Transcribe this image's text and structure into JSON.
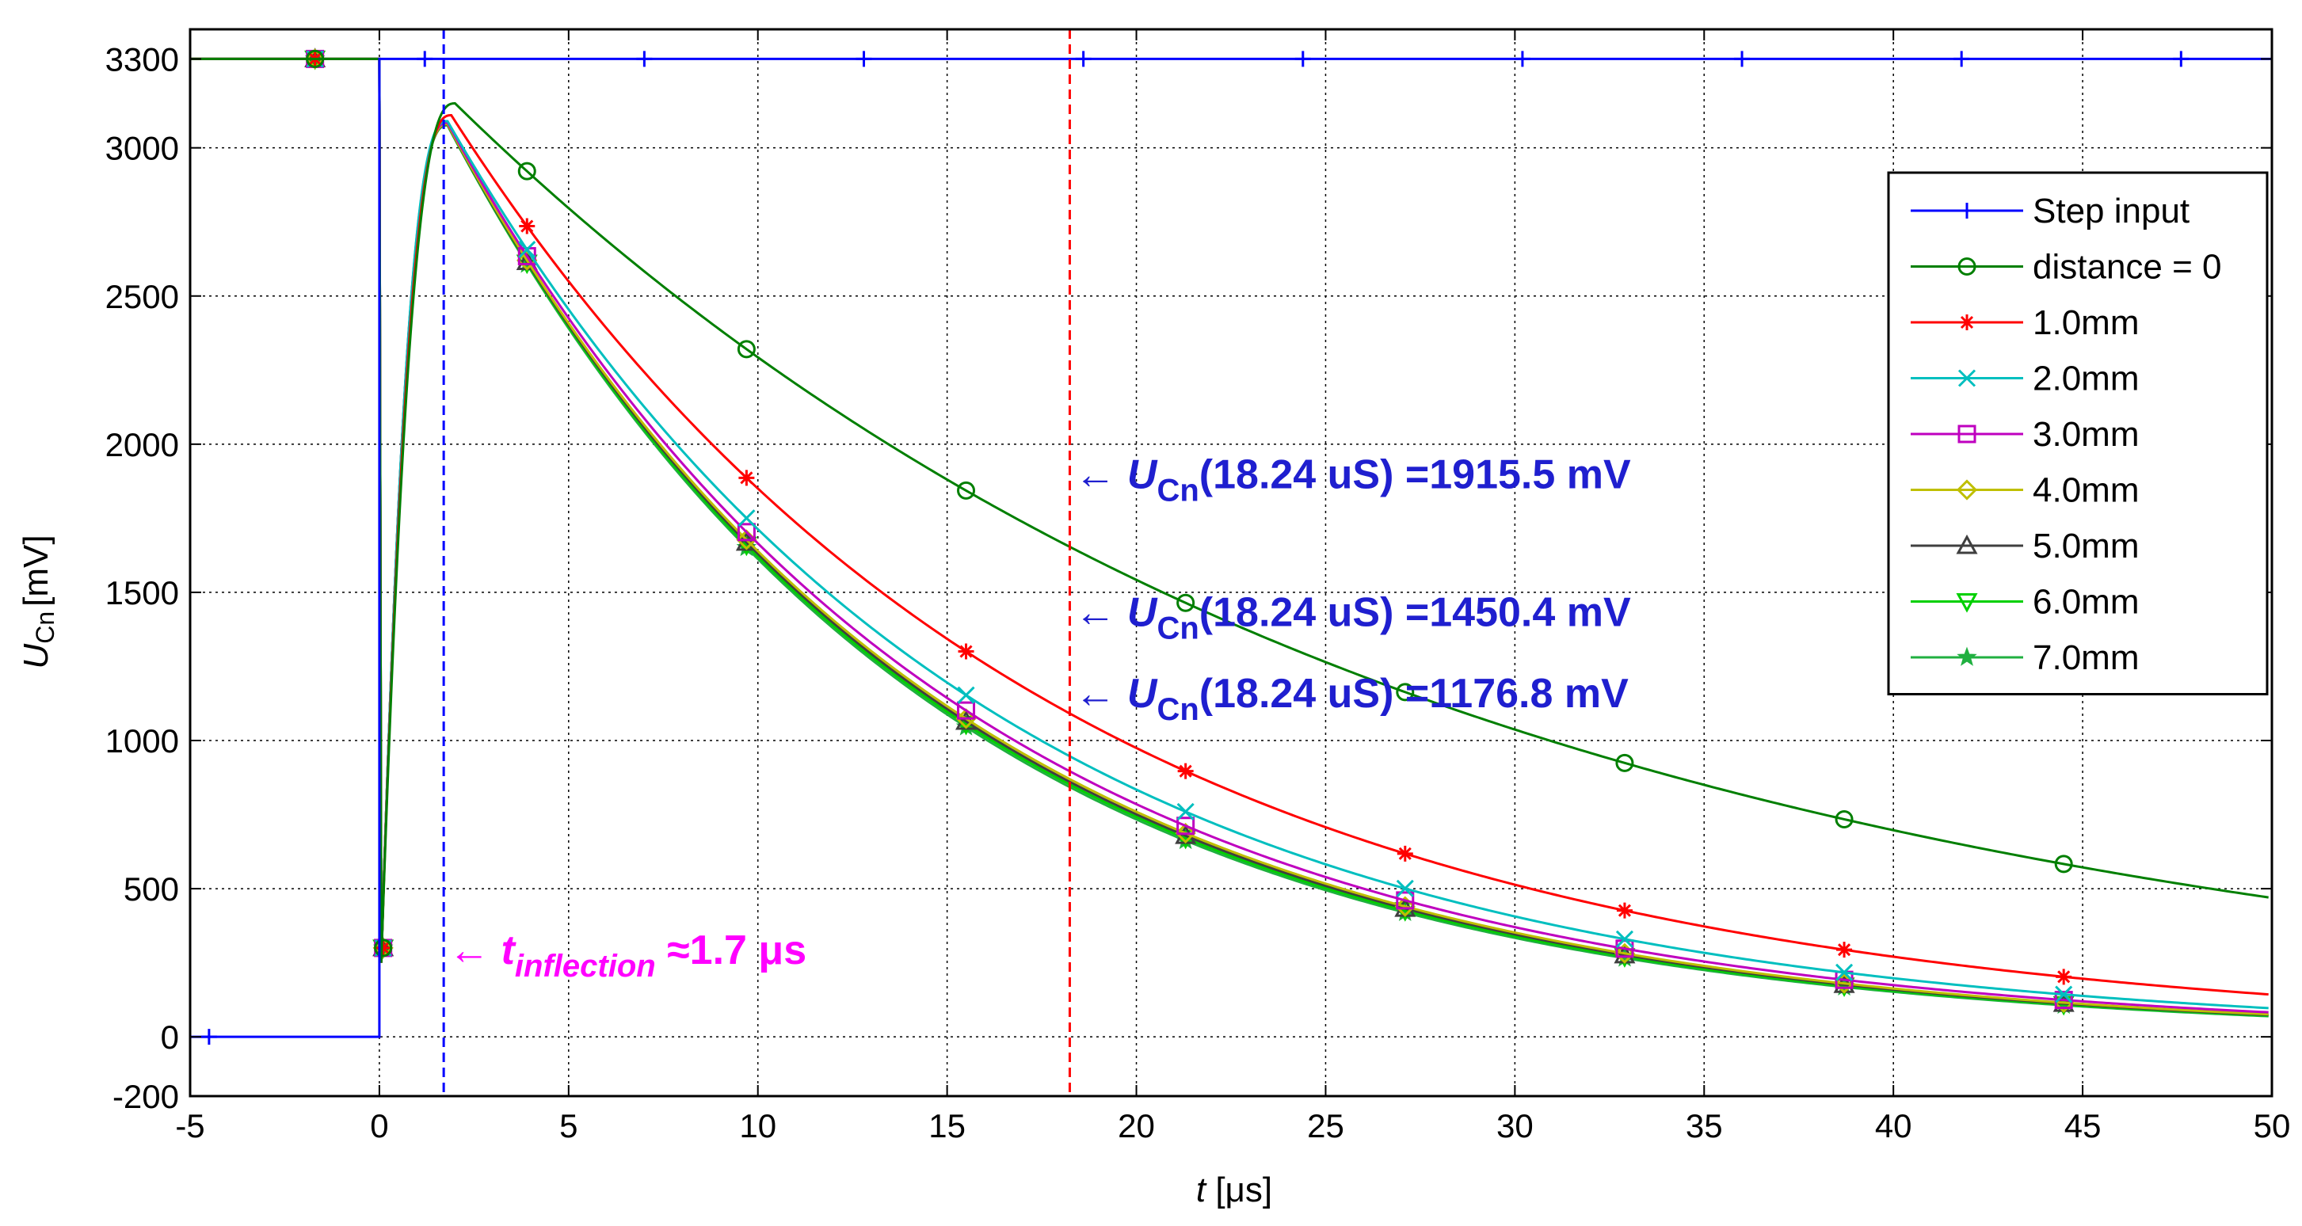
{
  "chart_data": {
    "type": "line",
    "xlabel": "t [μs]",
    "ylabel_main": "U",
    "ylabel_sub": "Cn",
    "ylabel_unit": "[mV]",
    "xlim": [
      -5,
      50
    ],
    "ylim": [
      -200,
      3400
    ],
    "x_ticks": [
      -5,
      0,
      5,
      10,
      15,
      20,
      25,
      30,
      35,
      40,
      45,
      50
    ],
    "y_ticks": [
      -200,
      0,
      500,
      1000,
      1500,
      2000,
      2500,
      3000,
      3300
    ],
    "grid": true,
    "legend_position": "top-right",
    "legend": [
      {
        "label": "Step input",
        "color": "#0000ff",
        "marker": "plus"
      },
      {
        "label": "distance = 0",
        "color": "#007f00",
        "marker": "circle"
      },
      {
        "label": "1.0mm",
        "color": "#ff0000",
        "marker": "asterisk"
      },
      {
        "label": "2.0mm",
        "color": "#00bfbf",
        "marker": "x"
      },
      {
        "label": "3.0mm",
        "color": "#bf00bf",
        "marker": "square"
      },
      {
        "label": "4.0mm",
        "color": "#bfbf00",
        "marker": "diamond"
      },
      {
        "label": "5.0mm",
        "color": "#3f3f3f",
        "marker": "triangle-up"
      },
      {
        "label": "6.0mm",
        "color": "#00d000",
        "marker": "triangle-down"
      },
      {
        "label": "7.0mm",
        "color": "#20b040",
        "marker": "star"
      }
    ],
    "step_input": {
      "x": [
        -5,
        0,
        0,
        50
      ],
      "y": [
        0,
        0,
        3300,
        3300
      ],
      "marker_x": [
        -4.5,
        1.2,
        7.0,
        12.8,
        18.6,
        24.4,
        30.2,
        36.0,
        41.8,
        47.6
      ]
    },
    "response_series": [
      {
        "name": "distance = 0",
        "peak": 3150,
        "peak_t": 2.0,
        "tau": 25.2
      },
      {
        "name": "1.0mm",
        "peak": 3110,
        "peak_t": 1.9,
        "tau": 15.6
      },
      {
        "name": "2.0mm",
        "peak": 3090,
        "peak_t": 1.8,
        "tau": 13.9
      },
      {
        "name": "3.0mm",
        "peak": 3085,
        "peak_t": 1.8,
        "tau": 13.3
      },
      {
        "name": "4.0mm",
        "peak": 3080,
        "peak_t": 1.8,
        "tau": 13.0
      },
      {
        "name": "5.0mm",
        "peak": 3078,
        "peak_t": 1.8,
        "tau": 12.9
      },
      {
        "name": "6.0mm",
        "peak": 3077,
        "peak_t": 1.8,
        "tau": 12.8
      },
      {
        "name": "7.0mm",
        "peak": 3076,
        "peak_t": 1.8,
        "tau": 12.7
      }
    ],
    "initial_level": 3300,
    "dip_value": 250,
    "marker_x": [
      3.9,
      9.7,
      15.5,
      21.3,
      27.1,
      32.9,
      38.7,
      44.5
    ],
    "early_markers": [
      {
        "x": -1.7,
        "y": 3300
      },
      {
        "x": 0.1,
        "y": 300
      }
    ],
    "vlines": [
      {
        "x": 1.7,
        "color": "#0000ff",
        "label": "t_inflection"
      },
      {
        "x": 18.24,
        "color": "#ff0000",
        "label": "t_measure"
      }
    ],
    "annotations": [
      {
        "arrow": "←",
        "var": "U",
        "sub": "Cn",
        "text": "(18.24 uS)  =1915.5 mV",
        "color": "#1f1fcf",
        "value": 1915.5
      },
      {
        "arrow": "←",
        "var": "U",
        "sub": "Cn",
        "text": "(18.24 uS)  =1450.4 mV",
        "color": "#1f1fcf",
        "value": 1450.4
      },
      {
        "arrow": "←",
        "var": "U",
        "sub": "Cn",
        "text": "(18.24 uS)  =1176.8 mV",
        "color": "#1f1fcf",
        "value": 1176.8
      },
      {
        "arrow": "←",
        "var": "t",
        "sub": "inflection",
        "text": "≈1.7 μs",
        "color": "#ff00ff",
        "value": 1.7
      }
    ]
  }
}
